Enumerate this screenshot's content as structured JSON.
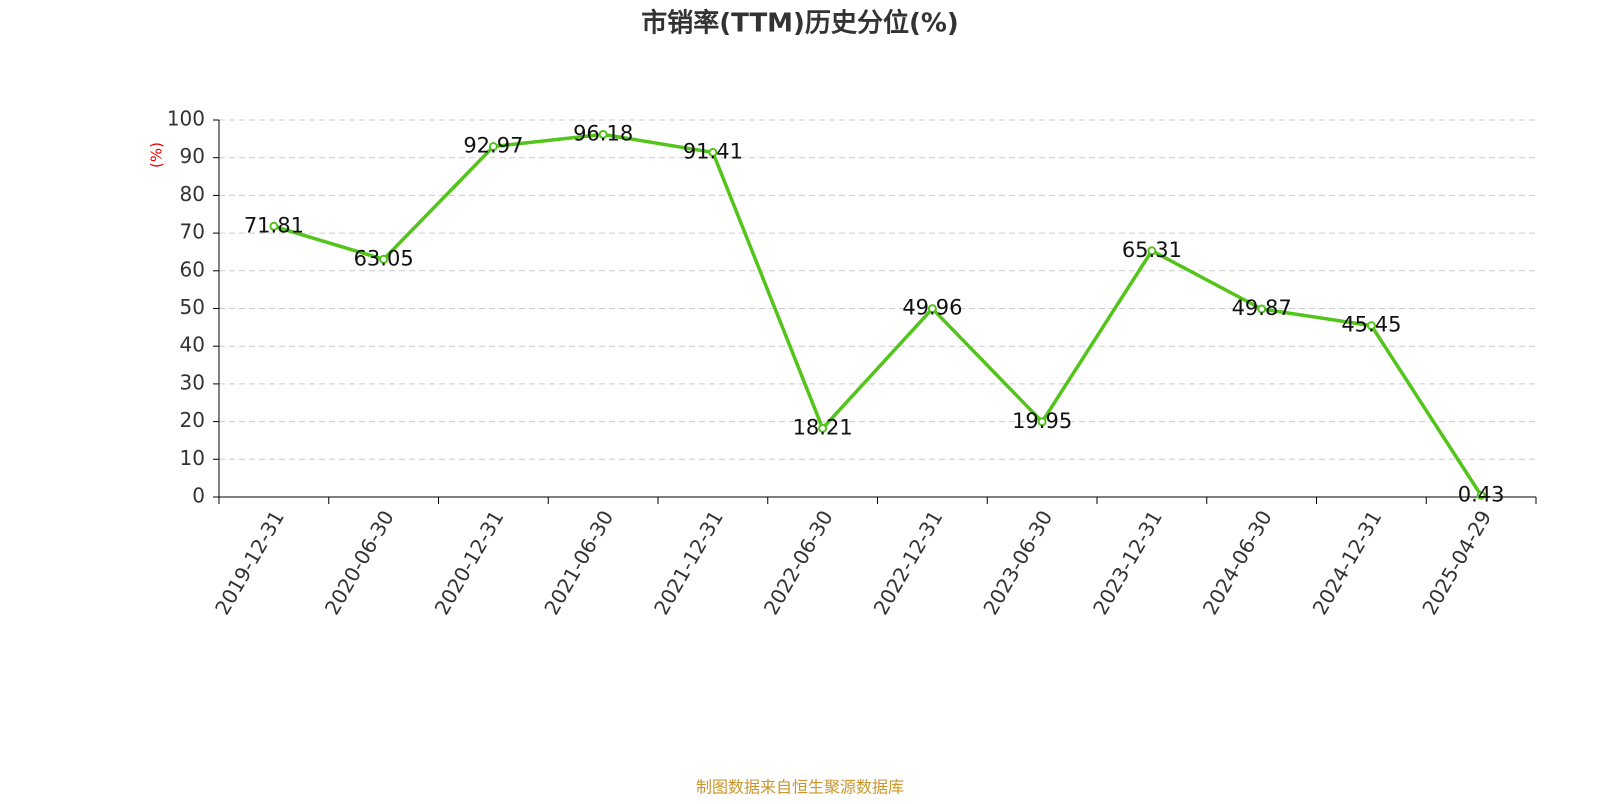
{
  "chart_data": {
    "type": "line",
    "title": "市销率(TTM)历史分位(%)",
    "y_label": "(%)",
    "categories": [
      "2019-12-31",
      "2020-06-30",
      "2020-12-31",
      "2021-06-30",
      "2021-12-31",
      "2022-06-30",
      "2022-12-31",
      "2023-06-30",
      "2023-12-31",
      "2024-06-30",
      "2024-12-31",
      "2025-04-29"
    ],
    "series": [
      {
        "name": "市销率(TTM)历史分位",
        "color": "#52c41a",
        "values": [
          71.81,
          63.05,
          92.97,
          96.18,
          91.41,
          18.21,
          49.96,
          19.95,
          65.31,
          49.87,
          45.45,
          0.43
        ]
      }
    ],
    "ylim": [
      0,
      100
    ],
    "yticks": [
      0,
      10,
      20,
      30,
      40,
      50,
      60,
      70,
      80,
      90,
      100
    ],
    "grid": true,
    "source": "制图数据来自恒生聚源数据库"
  }
}
